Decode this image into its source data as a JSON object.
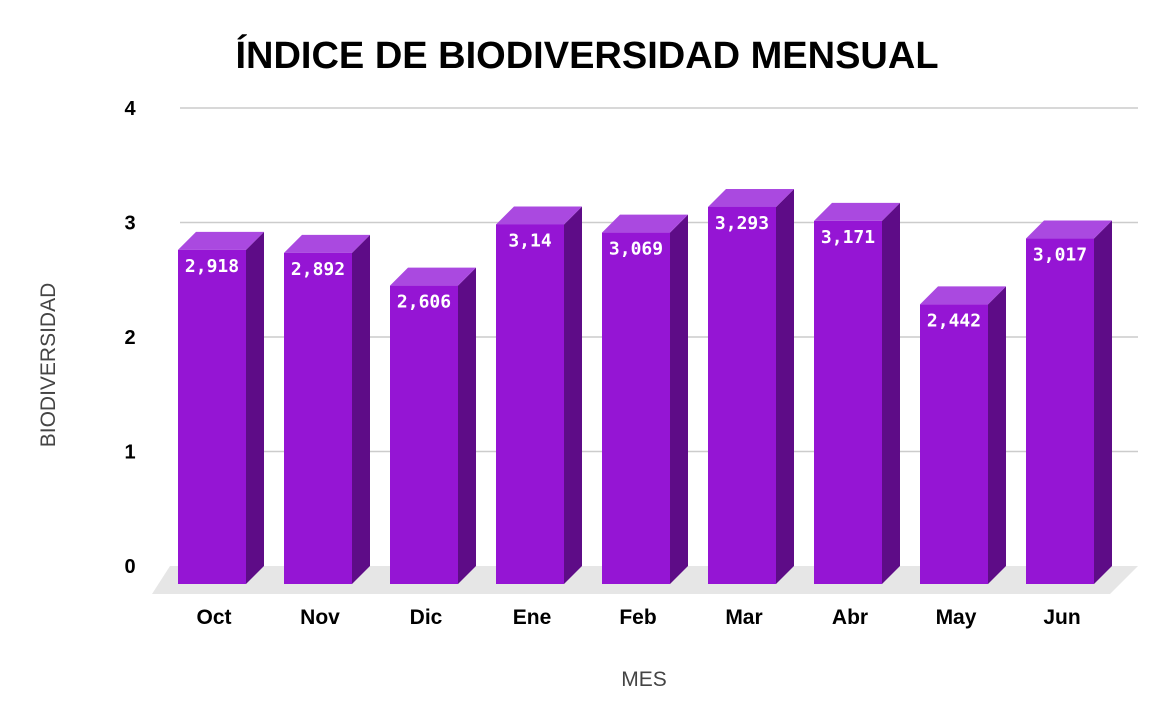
{
  "chart_data": {
    "type": "bar",
    "title": "ÍNDICE DE BIODIVERSIDAD MENSUAL",
    "xlabel": "MES",
    "ylabel": "BIODIVERSIDAD",
    "categories": [
      "Oct",
      "Nov",
      "Dic",
      "Ene",
      "Feb",
      "Mar",
      "Abr",
      "May",
      "Jun"
    ],
    "values": [
      2.918,
      2.892,
      2.606,
      3.14,
      3.069,
      3.293,
      3.171,
      2.442,
      3.017
    ],
    "value_labels": [
      "2,918",
      "2,892",
      "2,606",
      "3,14",
      "3,069",
      "3,293",
      "3,171",
      "2,442",
      "3,017"
    ],
    "ylim": [
      0,
      4
    ],
    "yticks": [
      "0",
      "1",
      "2",
      "3",
      "4"
    ],
    "grid": true,
    "style": "3d-bar",
    "colors": {
      "bar_front": "#9515d4",
      "bar_top": "#aa49e0",
      "bar_side": "#5e0c87",
      "floor": "#e6e6e6"
    }
  }
}
